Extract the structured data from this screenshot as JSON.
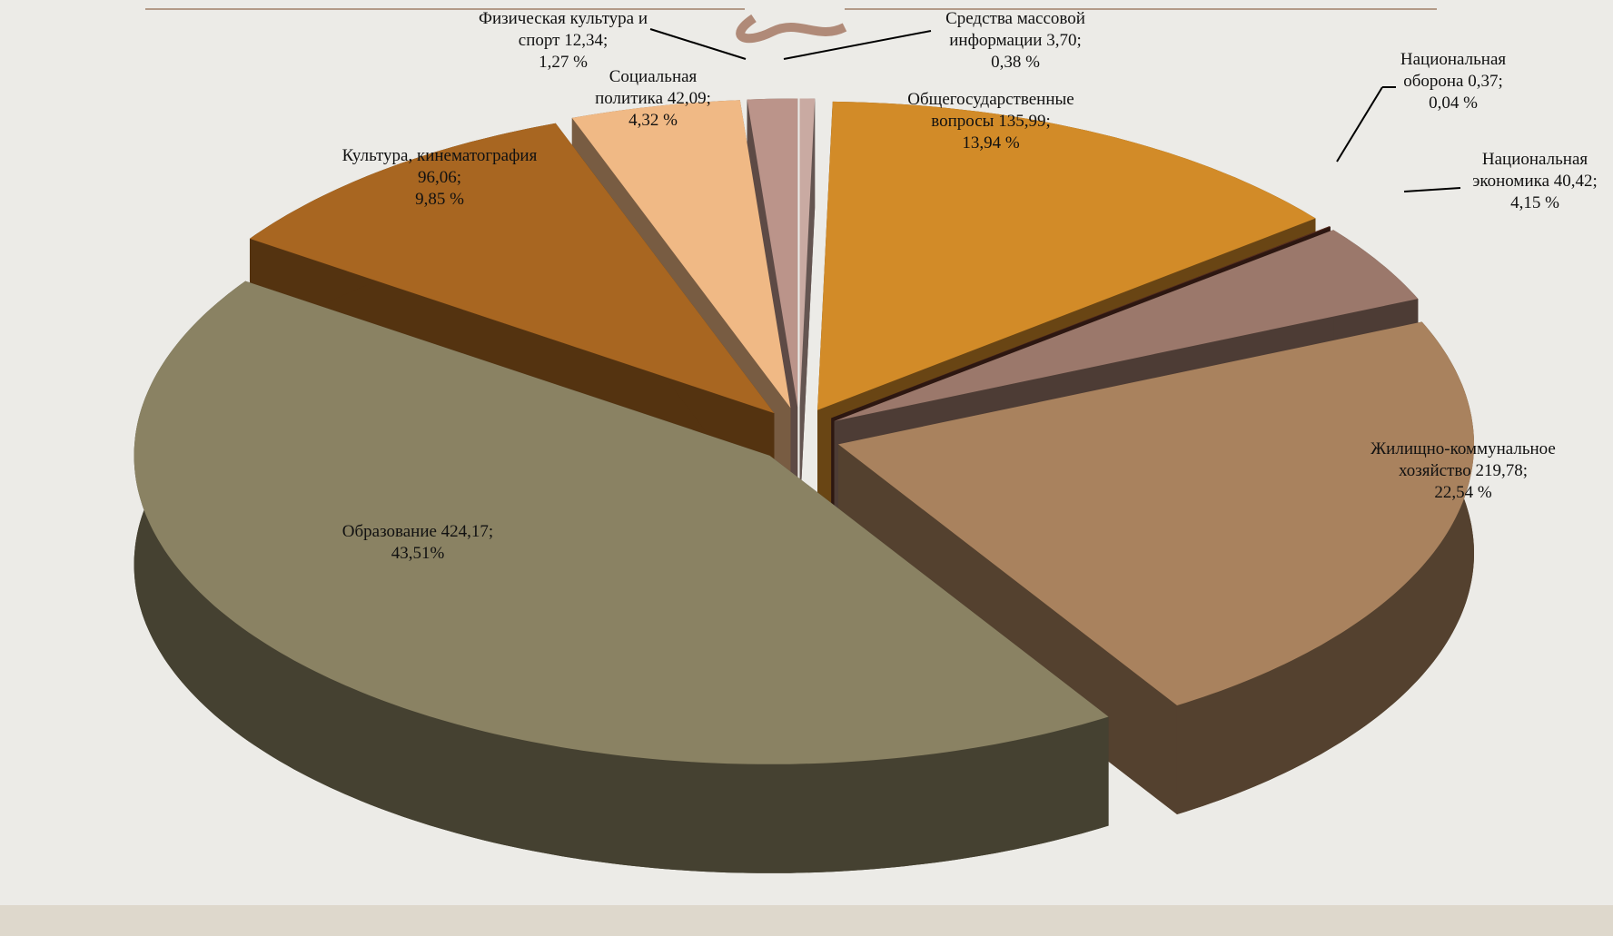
{
  "chart_data": {
    "type": "pie",
    "categories": [
      "Средства массовой информации",
      "Общегосударственные вопросы",
      "Национальная оборона",
      "Национальная экономика",
      "Жилищно-коммунальное хозяйство",
      "Образование",
      "Культура, кинематография",
      "Социальная политика",
      "Физическая культура и спорт"
    ],
    "values": [
      3.7,
      135.99,
      0.37,
      40.42,
      219.78,
      424.17,
      96.06,
      42.09,
      12.34
    ],
    "value_labels": [
      "3,70;",
      "135,99;",
      "0,37;",
      "40,42;",
      "219,78;",
      "424,17;",
      "96,06;",
      "42,09;",
      "12,34;"
    ],
    "percents": [
      0.38,
      13.94,
      0.04,
      4.15,
      22.54,
      43.51,
      9.85,
      4.32,
      1.27
    ],
    "percent_labels": [
      "0,38 %",
      "13,94 %",
      "0,04 %",
      "4,15 %",
      "22,54 %",
      "43,51%",
      "9,85 %",
      "4,32 %",
      "1,27 %"
    ],
    "colors": [
      "#c9aaa2",
      "#d28b28",
      "#5a2e22",
      "#9b786b",
      "#a9825e",
      "#8a8263",
      "#a86621",
      "#f0b985",
      "#bb948a"
    ]
  }
}
